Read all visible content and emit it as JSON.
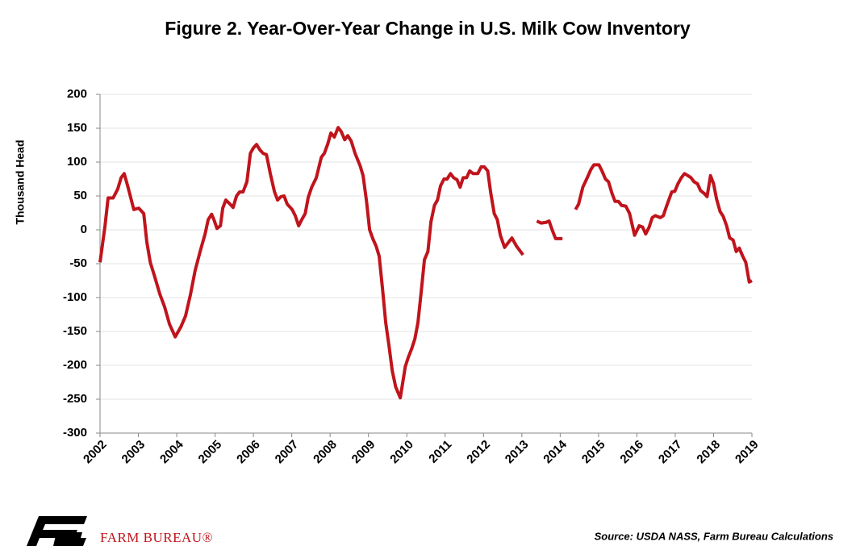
{
  "chart_data": {
    "type": "line",
    "title": "Figure 2. Year-Over-Year Change in U.S. Milk Cow Inventory",
    "y_label": "Thousand Head",
    "source": "Source: USDA NASS, Farm Bureau Calculations",
    "logo_text": "FARM BUREAU®",
    "xlim": [
      2002,
      2019
    ],
    "xticks": [
      2002,
      2003,
      2004,
      2005,
      2006,
      2007,
      2008,
      2009,
      2010,
      2011,
      2012,
      2013,
      2014,
      2015,
      2016,
      2017,
      2018,
      2019
    ],
    "ylim": [
      -300,
      200
    ],
    "yticks": [
      -300,
      -250,
      -200,
      -150,
      -100,
      -50,
      0,
      50,
      100,
      150,
      200
    ],
    "grid": true,
    "x": [
      2002.0,
      2002.13,
      2002.21,
      2002.34,
      2002.46,
      2002.55,
      2002.63,
      2002.72,
      2002.88,
      2003.01,
      2003.14,
      2003.22,
      2003.31,
      2003.43,
      2003.56,
      2003.68,
      2003.81,
      2003.96,
      2004.11,
      2004.23,
      2004.36,
      2004.48,
      2004.61,
      2004.74,
      2004.82,
      2004.91,
      2004.97,
      2005.05,
      2005.14,
      2005.2,
      2005.28,
      2005.39,
      2005.47,
      2005.56,
      2005.64,
      2005.73,
      2005.83,
      2005.92,
      2006.0,
      2006.08,
      2006.17,
      2006.25,
      2006.34,
      2006.44,
      2006.55,
      2006.63,
      2006.72,
      2006.8,
      2006.88,
      2007.01,
      2007.09,
      2007.18,
      2007.26,
      2007.35,
      2007.43,
      2007.52,
      2007.64,
      2007.77,
      2007.85,
      2007.94,
      2008.02,
      2008.11,
      2008.21,
      2008.29,
      2008.38,
      2008.46,
      2008.55,
      2008.65,
      2008.78,
      2008.86,
      2008.95,
      2009.03,
      2009.12,
      2009.2,
      2009.28,
      2009.37,
      2009.45,
      2009.54,
      2009.62,
      2009.71,
      2009.83,
      2009.96,
      2010.04,
      2010.13,
      2010.21,
      2010.29,
      2010.38,
      2010.46,
      2010.55,
      2010.63,
      2010.72,
      2010.8,
      2010.88,
      2010.97,
      2011.05,
      2011.14,
      2011.22,
      2011.31,
      2011.39,
      2011.47,
      2011.56,
      2011.64,
      2011.73,
      2011.85,
      2011.94,
      2012.02,
      2012.11,
      2012.19,
      2012.28,
      2012.36,
      2012.44,
      2012.55,
      2012.63,
      2012.74,
      2012.86,
      2013.03,
      2013.2,
      2013.39,
      2013.5,
      2013.63,
      2013.71,
      2013.79,
      2013.88,
      2014.06,
      2014.23,
      2014.4,
      2014.48,
      2014.59,
      2014.69,
      2014.8,
      2014.88,
      2015.01,
      2015.09,
      2015.18,
      2015.26,
      2015.35,
      2015.43,
      2015.52,
      2015.6,
      2015.71,
      2015.81,
      2015.94,
      2016.06,
      2016.15,
      2016.23,
      2016.32,
      2016.4,
      2016.48,
      2016.61,
      2016.69,
      2016.78,
      2016.91,
      2016.99,
      2017.07,
      2017.16,
      2017.24,
      2017.33,
      2017.41,
      2017.49,
      2017.58,
      2017.66,
      2017.75,
      2017.83,
      2017.92,
      2018.0,
      2018.08,
      2018.17,
      2018.25,
      2018.34,
      2018.42,
      2018.51,
      2018.59,
      2018.67,
      2018.76,
      2018.84,
      2018.93,
      2019.0
    ],
    "series": [
      {
        "name": "Year-Over-Year Change",
        "color": "#c0141c",
        "values": [
          -48,
          6,
          47,
          47,
          60,
          77,
          83,
          65,
          30,
          32,
          24,
          -18,
          -48,
          -70,
          -95,
          -113,
          -139,
          -158,
          -143,
          -127,
          -95,
          -60,
          -32,
          -6,
          15,
          23,
          15,
          2,
          6,
          32,
          44,
          38,
          33,
          50,
          56,
          56,
          71,
          113,
          121,
          126,
          118,
          113,
          111,
          83,
          56,
          44,
          49,
          50,
          38,
          30,
          21,
          6,
          15,
          24,
          48,
          63,
          77,
          107,
          113,
          127,
          143,
          137,
          151,
          145,
          133,
          139,
          131,
          113,
          95,
          80,
          42,
          0,
          -14,
          -24,
          -39,
          -89,
          -137,
          -173,
          -208,
          -232,
          -248,
          -202,
          -188,
          -175,
          -161,
          -137,
          -89,
          -44,
          -32,
          12,
          36,
          44,
          65,
          75,
          75,
          83,
          77,
          74,
          63,
          77,
          77,
          87,
          83,
          83,
          93,
          93,
          87,
          54,
          24,
          15,
          -8,
          -26,
          -20,
          -12,
          -24,
          -37,
          null,
          13,
          10,
          11,
          13,
          0,
          -13,
          -13,
          null,
          30,
          38,
          63,
          75,
          89,
          96,
          96,
          87,
          75,
          71,
          54,
          42,
          42,
          36,
          35,
          24,
          -8,
          6,
          4,
          -6,
          4,
          18,
          21,
          18,
          21,
          36,
          56,
          57,
          68,
          77,
          83,
          80,
          77,
          71,
          68,
          58,
          54,
          49,
          80,
          68,
          45,
          27,
          20,
          6,
          -12,
          -15,
          -32,
          -27,
          -39,
          -48,
          -77,
          -75
        ]
      }
    ]
  }
}
